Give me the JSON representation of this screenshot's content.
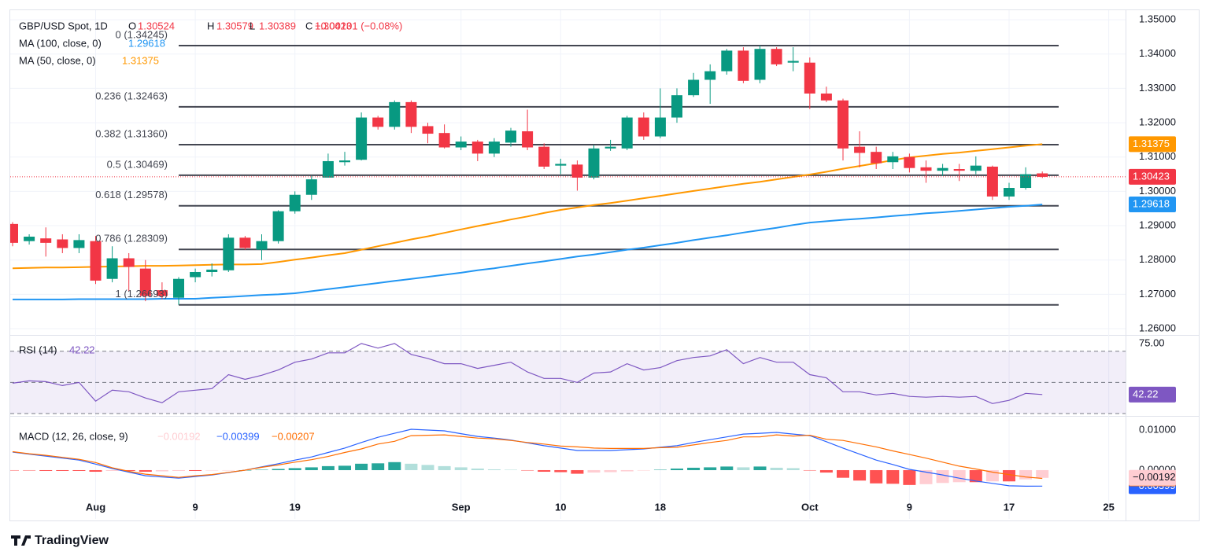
{
  "chart_data": [
    {
      "type": "candlestick",
      "title": "GBP/USD Spot, 1D",
      "header_fields": [
        "O",
        "H",
        "L",
        "C"
      ],
      "change": "−0.00101 (−0.08%)",
      "categories": [
        null,
        null,
        null,
        null,
        null,
        "Aug",
        null,
        null,
        null,
        null,
        null,
        "9",
        null,
        null,
        null,
        null,
        null,
        "19",
        null,
        null,
        null,
        null,
        null,
        null,
        null,
        null,
        null,
        "Sep",
        null,
        null,
        null,
        null,
        null,
        "10",
        null,
        null,
        null,
        null,
        null,
        "18",
        null,
        null,
        null,
        null,
        null,
        null,
        null,
        null,
        "Oct",
        null,
        null,
        null,
        null,
        null,
        "9",
        null,
        null,
        null,
        null,
        null,
        "17",
        null,
        null,
        null,
        null,
        null,
        "25"
      ],
      "open": [
        1.2905,
        1.2855,
        1.2863,
        1.286,
        1.2835,
        1.2855,
        1.2745,
        1.2805,
        1.2775,
        1.2712,
        1.269,
        1.275,
        1.2765,
        1.277,
        1.2865,
        1.283,
        1.2855,
        1.2942,
        1.299,
        1.304,
        1.3085,
        1.3092,
        1.3215,
        1.3188,
        1.326,
        1.319,
        1.317,
        1.3128,
        1.3145,
        1.311,
        1.3142,
        1.3175,
        1.313,
        1.3075,
        1.3078,
        1.304,
        1.3125,
        1.3125,
        1.3215,
        1.316,
        1.3215,
        1.328,
        1.3325,
        1.335,
        1.341,
        1.3325,
        1.3415,
        1.3375,
        1.3375,
        1.3285,
        1.3265,
        1.313,
        1.3115,
        1.3085,
        1.31,
        1.307,
        1.306,
        1.3065,
        1.306,
        1.3072,
        1.2985,
        1.301,
        1.30524,
        null,
        null,
        null,
        null
      ],
      "high": [
        1.291,
        1.2875,
        1.2895,
        1.2875,
        1.2875,
        1.287,
        1.284,
        1.282,
        1.28,
        1.2735,
        1.275,
        1.2775,
        1.279,
        1.2875,
        1.287,
        1.2875,
        1.2945,
        1.3,
        1.3045,
        1.311,
        1.3115,
        1.323,
        1.322,
        1.3265,
        1.3265,
        1.32,
        1.3195,
        1.316,
        1.315,
        1.3155,
        1.3185,
        1.3238,
        1.314,
        1.3095,
        1.309,
        1.3135,
        1.315,
        1.322,
        1.323,
        1.33,
        1.33,
        1.3345,
        1.337,
        1.3415,
        1.342,
        1.34245,
        1.342,
        1.342,
        1.339,
        1.3305,
        1.327,
        1.3175,
        1.313,
        1.3115,
        1.311,
        1.309,
        1.308,
        1.308,
        1.3102,
        1.3075,
        1.3025,
        1.307,
        1.30579,
        null,
        null,
        null,
        null
      ],
      "low": [
        1.284,
        1.2845,
        1.281,
        1.282,
        1.282,
        1.273,
        1.2735,
        1.271,
        1.268,
        1.2685,
        1.26693,
        1.2735,
        1.2752,
        1.2765,
        1.283,
        1.28,
        1.2848,
        1.2935,
        1.2975,
        1.304,
        1.3075,
        1.309,
        1.318,
        1.318,
        1.317,
        1.314,
        1.3125,
        1.312,
        1.3088,
        1.31,
        1.313,
        1.312,
        1.3065,
        1.305,
        1.3002,
        1.3035,
        1.3118,
        1.312,
        1.315,
        1.3155,
        1.32,
        1.3275,
        1.3255,
        1.334,
        1.3315,
        1.3315,
        1.3365,
        1.335,
        1.324,
        1.326,
        1.309,
        1.307,
        1.3065,
        1.3065,
        1.3055,
        1.3025,
        1.3045,
        1.303,
        1.305,
        1.2975,
        1.2975,
        1.3005,
        1.30389,
        null,
        null,
        null,
        null
      ],
      "close": [
        1.285,
        1.2868,
        1.285,
        1.2835,
        1.2858,
        1.274,
        1.2805,
        1.278,
        1.2695,
        1.2695,
        1.2745,
        1.2765,
        1.2772,
        1.2865,
        1.2835,
        1.2855,
        1.2942,
        1.299,
        1.3035,
        1.3088,
        1.309,
        1.3215,
        1.3188,
        1.326,
        1.3188,
        1.3168,
        1.3128,
        1.3145,
        1.311,
        1.3145,
        1.3177,
        1.3128,
        1.3072,
        1.308,
        1.304,
        1.3125,
        1.313,
        1.3215,
        1.316,
        1.3215,
        1.328,
        1.3325,
        1.335,
        1.341,
        1.3322,
        1.3415,
        1.337,
        1.338,
        1.3285,
        1.3265,
        1.3125,
        1.3112,
        1.3082,
        1.3102,
        1.3068,
        1.306,
        1.3068,
        1.306,
        1.3075,
        1.2985,
        1.301,
        1.305,
        1.30423,
        null,
        null,
        null,
        null
      ],
      "up_color": "#089981",
      "down_color": "#f23645",
      "series": [
        {
          "name": "MA (100, close, 0)",
          "color": "#2196f3",
          "values": [
            1.2685,
            1.2685,
            1.2685,
            1.2685,
            1.2686,
            1.2686,
            1.2686,
            1.2686,
            1.2686,
            1.2687,
            1.2687,
            1.2687,
            1.269,
            1.2692,
            1.2695,
            1.2698,
            1.27,
            1.2703,
            1.2709,
            1.2715,
            1.2721,
            1.2727,
            1.2733,
            1.2739,
            1.2745,
            1.2751,
            1.2757,
            1.2763,
            1.277,
            1.2776,
            1.2783,
            1.279,
            1.2796,
            1.2803,
            1.281,
            1.2816,
            1.2823,
            1.283,
            1.2836,
            1.2843,
            1.285,
            1.2858,
            1.2865,
            1.2872,
            1.288,
            1.2887,
            1.2894,
            1.2902,
            1.2909,
            1.2913,
            1.2917,
            1.292,
            1.2924,
            1.2928,
            1.2932,
            1.2936,
            1.2939,
            1.2943,
            1.2947,
            1.2951,
            1.2955,
            1.2958,
            1.29618,
            null,
            null,
            null,
            null
          ]
        },
        {
          "name": "MA (50, close, 0)",
          "color": "#ff9800",
          "values": [
            1.2776,
            1.2777,
            1.2778,
            1.2778,
            1.2779,
            1.278,
            1.2781,
            1.2782,
            1.2783,
            1.2783,
            1.2784,
            1.2785,
            1.2786,
            1.2787,
            1.2787,
            1.2788,
            1.2794,
            1.2801,
            1.2807,
            1.2814,
            1.282,
            1.283,
            1.284,
            1.285,
            1.286,
            1.2869,
            1.2879,
            1.2889,
            1.2899,
            1.2908,
            1.2918,
            1.2927,
            1.2937,
            1.2946,
            1.2953,
            1.296,
            1.2966,
            1.2973,
            1.298,
            1.2987,
            1.2994,
            1.3001,
            1.3008,
            1.3015,
            1.3022,
            1.3028,
            1.3035,
            1.3042,
            1.3049,
            1.3057,
            1.3066,
            1.3074,
            1.3082,
            1.3091,
            1.3099,
            1.3104,
            1.3109,
            1.3113,
            1.3118,
            1.3123,
            1.3128,
            1.3133,
            1.31375,
            null,
            null,
            null,
            null
          ]
        }
      ],
      "levels": [
        {
          "value": 1.34245,
          "label": "0 (1.34245)"
        },
        {
          "value": 1.32463,
          "label": "0.236 (1.32463)"
        },
        {
          "value": 1.3136,
          "label": "0.382 (1.31360)"
        },
        {
          "value": 1.30469,
          "label": "0.5 (1.30469)"
        },
        {
          "value": 1.29578,
          "label": "0.618 (1.29578)"
        },
        {
          "value": 1.28309,
          "label": "0.786 (1.28309)"
        },
        {
          "value": 1.26693,
          "label": "1 (1.26693)"
        }
      ],
      "level_color": "#434651",
      "ylim": [
        1.2584,
        1.353
      ],
      "yticks": [
        {
          "value": 1.26,
          "label": "1.26000"
        },
        {
          "value": 1.27,
          "label": "1.27000"
        },
        {
          "value": 1.28,
          "label": "1.28000"
        },
        {
          "value": 1.29,
          "label": "1.29000"
        },
        {
          "value": 1.3,
          "label": "1.30000"
        },
        {
          "value": 1.31,
          "label": "1.31000"
        },
        {
          "value": 1.32,
          "label": "1.32000"
        },
        {
          "value": 1.33,
          "label": "1.33000"
        },
        {
          "value": 1.34,
          "label": "1.34000"
        },
        {
          "value": 1.35,
          "label": "1.35000"
        }
      ],
      "grid": true
    },
    {
      "type": "line",
      "title": "RSI (14)",
      "color": "#7e57c2",
      "values": [
        49.5,
        51,
        50.5,
        48,
        50,
        38,
        45,
        44,
        40,
        37,
        44,
        45,
        46,
        55,
        52,
        54.6,
        58,
        63,
        65,
        69,
        69,
        75,
        72,
        75,
        68,
        65.4,
        62,
        62,
        59,
        61,
        63,
        56.7,
        52.6,
        52.6,
        50,
        56,
        56.7,
        62,
        58,
        59.5,
        64,
        66,
        67,
        71,
        62,
        66,
        63,
        63,
        55,
        53,
        44,
        44,
        42,
        43,
        41,
        40.5,
        41,
        40.5,
        41,
        36.4,
        38.5,
        43,
        42.22,
        null,
        null,
        null,
        null
      ],
      "levels": [
        70,
        50,
        30
      ],
      "ylim": [
        29,
        80
      ],
      "yticks": [
        {
          "value": 75,
          "label": "75.00"
        }
      ]
    },
    {
      "type": "macd",
      "title": "MACD (12, 26, close, 9)",
      "series": [
        {
          "type": "histogram",
          "color": "#ffcdd2",
          "colors": [
            "#26a69a",
            "#b2dfdb",
            "#ff5252",
            "#ffcdd2"
          ],
          "last_value_label": "−0.00192",
          "values": [
            -0.0001,
            -0.0001,
            -0.0002,
            -0.0002,
            -0.0002,
            -0.0004,
            -0.0002,
            -0.0002,
            -0.0004,
            -0.0003,
            -0.0002,
            -0.0002,
            -0.0001,
            -5e-05,
            0,
            0.0001,
            0.0003,
            0.0005,
            0.0007,
            0.001,
            0.0011,
            0.0016,
            0.0017,
            0.002,
            0.0016,
            0.0013,
            0.001,
            0.0007,
            0.0004,
            0.0002,
            0.0001,
            -0.0001,
            -0.0004,
            -0.0005,
            -0.0009,
            -0.0006,
            -0.0005,
            -0.0003,
            -0.0001,
            0.0001,
            0.0004,
            0.0006,
            0.0007,
            0.0009,
            0.0007,
            0.0009,
            0.0006,
            0.0005,
            -0.0001,
            -0.0006,
            -0.0019,
            -0.0026,
            -0.0033,
            -0.0034,
            -0.0037,
            -0.0035,
            -0.0032,
            -0.003,
            -0.003,
            -0.0028,
            -0.0028,
            -0.0023,
            -0.00192,
            null,
            null,
            null,
            null
          ]
        },
        {
          "type": "line",
          "color": "#2962ff",
          "last_value_label": "−0.00399",
          "values": [
            0.0045,
            0.004,
            0.0035,
            0.003,
            0.0025,
            0.0015,
            0.0004,
            -0.0005,
            -0.0014,
            -0.0017,
            -0.002,
            -0.0016,
            -0.0012,
            -0.0006,
            0.0,
            0.0008,
            0.0016,
            0.0025,
            0.0033,
            0.0044,
            0.0055,
            0.0069,
            0.0082,
            0.0092,
            0.0102,
            0.01,
            0.0098,
            0.0091,
            0.0084,
            0.008,
            0.0075,
            0.0068,
            0.0061,
            0.0055,
            0.0049,
            0.0049,
            0.0049,
            0.0051,
            0.0053,
            0.0057,
            0.0061,
            0.0069,
            0.0076,
            0.0083,
            0.009,
            0.0092,
            0.0094,
            0.009,
            0.0086,
            0.0071,
            0.0055,
            0.004,
            0.0025,
            0.0014,
            0.0002,
            -0.0005,
            -0.0012,
            -0.002,
            -0.0027,
            -0.0033,
            -0.0039,
            -0.004,
            -0.00399,
            null,
            null,
            null,
            null
          ]
        },
        {
          "type": "line",
          "color": "#ff6d00",
          "last_value_label": "−0.00207",
          "values": [
            0.0046,
            0.0041,
            0.0037,
            0.0032,
            0.0027,
            0.0019,
            0.0006,
            -0.0003,
            -0.001,
            -0.0014,
            -0.0018,
            -0.0014,
            -0.0011,
            -0.00055,
            0.0,
            0.0007,
            0.0013,
            0.002,
            0.0026,
            0.0034,
            0.0044,
            0.0053,
            0.0065,
            0.0072,
            0.0086,
            0.0087,
            0.0088,
            0.0084,
            0.008,
            0.0078,
            0.0074,
            0.0069,
            0.0065,
            0.006,
            0.0058,
            0.0055,
            0.0054,
            0.0054,
            0.0054,
            0.0056,
            0.0057,
            0.0063,
            0.0069,
            0.0074,
            0.0083,
            0.0083,
            0.0088,
            0.0085,
            0.0087,
            0.0077,
            0.0074,
            0.0066,
            0.0058,
            0.0048,
            0.0039,
            0.003,
            0.002,
            0.001,
            0.0003,
            -0.0005,
            -0.0011,
            -0.0017,
            -0.00207,
            null,
            null,
            null,
            null
          ]
        }
      ],
      "ylim": [
        -0.01216,
        0.01333
      ],
      "yticks": [
        {
          "value": 0,
          "label": "0.00000"
        },
        {
          "value": 0.01,
          "label": "0.01000"
        }
      ]
    }
  ],
  "footer": {
    "brand": "TradingView"
  }
}
